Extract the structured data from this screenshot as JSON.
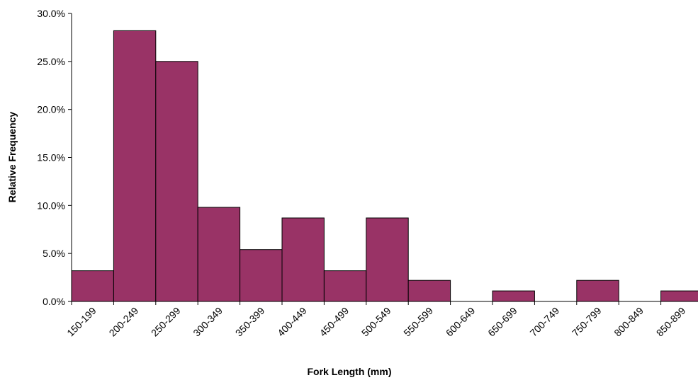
{
  "chart_data": {
    "type": "bar",
    "title": "",
    "xlabel": "Fork Length (mm)",
    "ylabel": "Relative Frequency",
    "categories": [
      "150-199",
      "200-249",
      "250-299",
      "300-349",
      "350-399",
      "400-449",
      "450-499",
      "500-549",
      "550-599",
      "600-649",
      "650-699",
      "700-749",
      "750-799",
      "800-849",
      "850-899"
    ],
    "values": [
      3.2,
      28.2,
      25.0,
      9.8,
      5.4,
      8.7,
      3.2,
      8.7,
      2.2,
      0.0,
      1.1,
      0.0,
      2.2,
      0.0,
      1.1
    ],
    "ylim": [
      0,
      30
    ],
    "yticks": [
      "0.0%",
      "5.0%",
      "10.0%",
      "15.0%",
      "20.0%",
      "25.0%",
      "30.0%"
    ],
    "ytick_values": [
      0,
      5,
      10,
      15,
      20,
      25,
      30
    ],
    "grid": false,
    "legend": "none",
    "bar_color": "#993366"
  }
}
